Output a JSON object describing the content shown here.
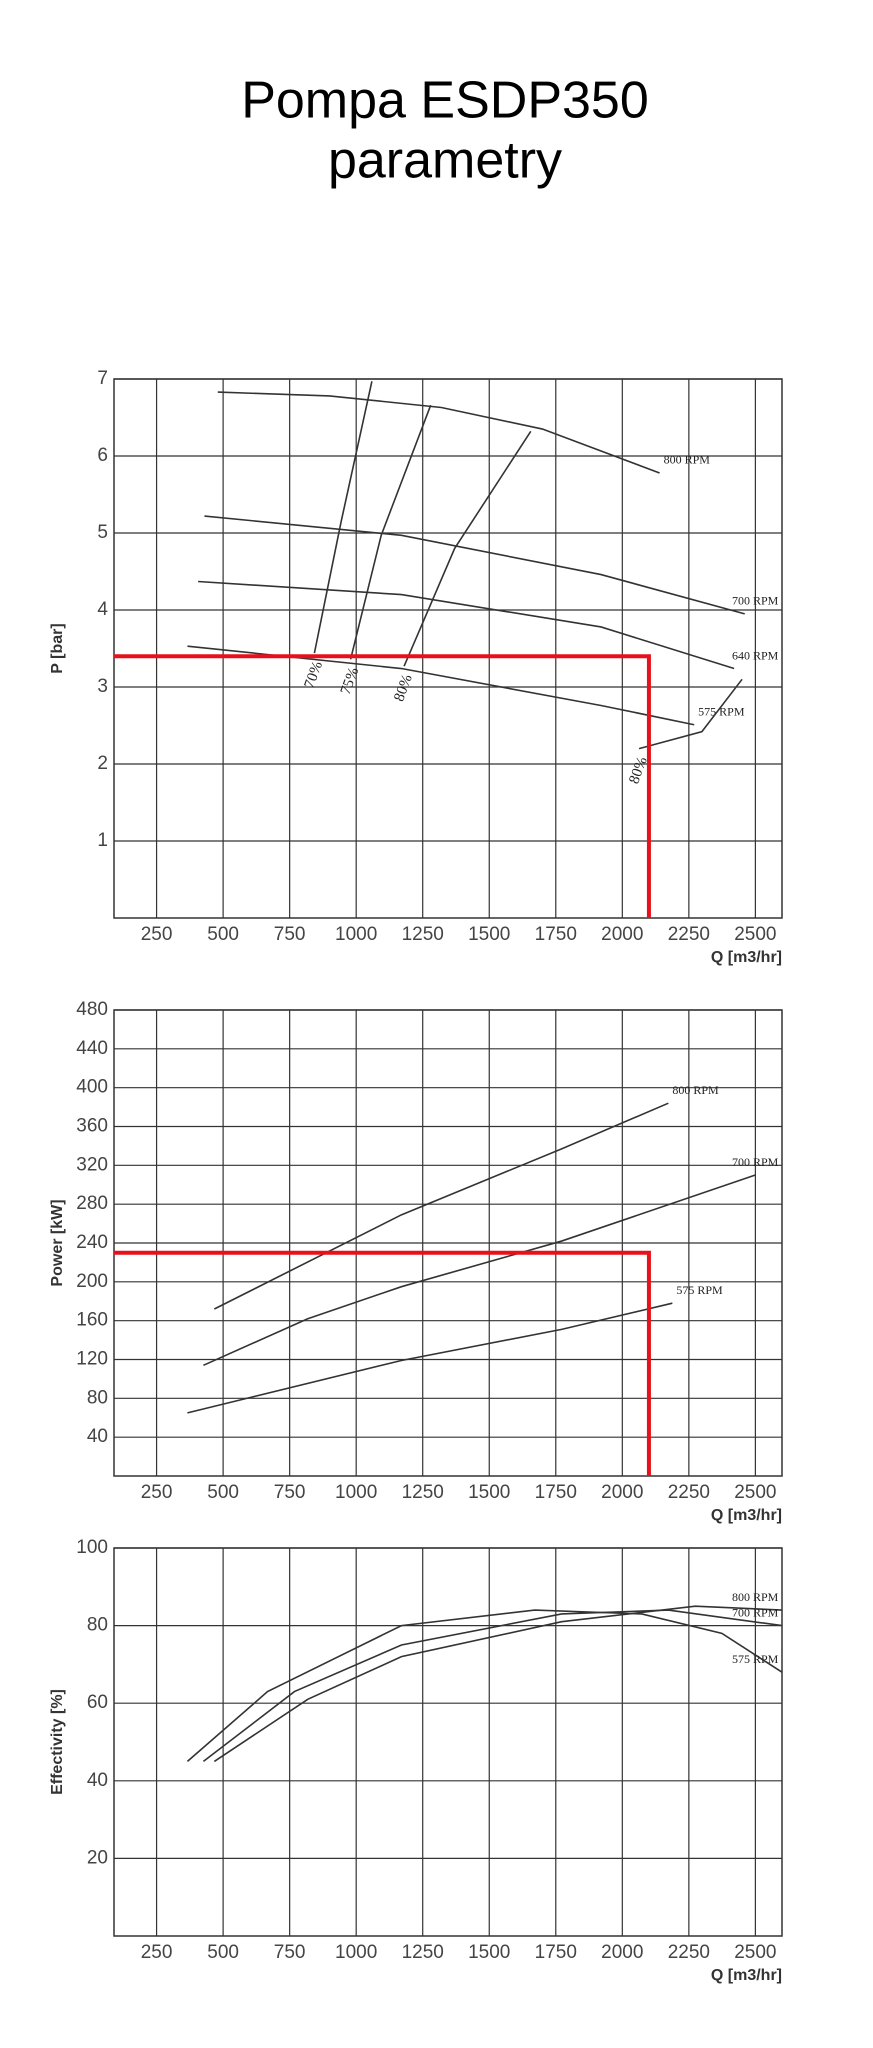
{
  "title": "Pompa ESDP350",
  "subtitle": "parametry",
  "chart_data": [
    {
      "type": "line",
      "x_label": "Q [m3/hr]",
      "y_label": "P [bar]",
      "grid": true,
      "xlim": [
        90,
        2600
      ],
      "xticks": [
        250,
        500,
        750,
        1000,
        1250,
        1500,
        1750,
        2000,
        2250,
        2500
      ],
      "ylim": [
        0,
        7
      ],
      "yticks": [
        1,
        2,
        3,
        4,
        5,
        6,
        7
      ],
      "series": [
        {
          "name": "800 RPM",
          "color": "#333333",
          "x": [
            480,
            900,
            1320,
            1700,
            2140
          ],
          "values": [
            6.83,
            6.78,
            6.63,
            6.35,
            5.78
          ]
        },
        {
          "name": "700 RPM",
          "color": "#333333",
          "x": [
            430,
            1170,
            1920,
            2460
          ],
          "values": [
            5.22,
            4.97,
            4.46,
            3.95
          ]
        },
        {
          "name": "640 RPM",
          "color": "#333333",
          "x": [
            406,
            1170,
            1920,
            2420
          ],
          "values": [
            4.37,
            4.2,
            3.78,
            3.24
          ]
        },
        {
          "name": "575 RPM",
          "color": "#333333",
          "x": [
            366,
            1170,
            1920,
            2270
          ],
          "values": [
            3.53,
            3.24,
            2.76,
            2.51
          ]
        },
        {
          "name": "70%",
          "color": "#333333",
          "x": [
            843,
            943,
            1059
          ],
          "values": [
            3.44,
            5.14,
            6.97
          ]
        },
        {
          "name": "75%",
          "color": "#333333",
          "x": [
            979,
            1094,
            1280
          ],
          "values": [
            3.36,
            4.97,
            6.66
          ]
        },
        {
          "name": "80%",
          "color": "#333333",
          "x": [
            1180,
            1370,
            1656
          ],
          "values": [
            3.27,
            4.8,
            6.32
          ]
        },
        {
          "name": "80%",
          "color": "#333333",
          "x": [
            2063,
            2299,
            2450
          ],
          "values": [
            2.2,
            2.42,
            3.1
          ]
        }
      ],
      "operating_point": {
        "x": 2100,
        "y": 3.4,
        "color": "#e8101a"
      }
    },
    {
      "type": "line",
      "x_label": "Q [m3/hr]",
      "y_label": "Power [kW]",
      "grid": true,
      "xlim": [
        90,
        2600
      ],
      "xticks": [
        250,
        500,
        750,
        1000,
        1250,
        1500,
        1750,
        2000,
        2250,
        2500
      ],
      "ylim": [
        0,
        480
      ],
      "yticks": [
        40,
        80,
        120,
        160,
        200,
        240,
        280,
        320,
        360,
        400,
        440,
        480
      ],
      "series": [
        {
          "name": "800 RPM",
          "color": "#333333",
          "x": [
            467,
            1170,
            1772,
            2173
          ],
          "values": [
            172,
            269,
            337,
            384
          ]
        },
        {
          "name": "700 RPM",
          "color": "#333333",
          "x": [
            426,
            818,
            1170,
            1772,
            2500
          ],
          "values": [
            114,
            162,
            195,
            242,
            310
          ]
        },
        {
          "name": "575 RPM",
          "color": "#333333",
          "x": [
            366,
            1170,
            1772,
            2188
          ],
          "values": [
            65,
            119,
            151,
            178
          ]
        }
      ],
      "operating_point": {
        "x": 2100,
        "y": 230,
        "color": "#e8101a"
      }
    },
    {
      "type": "line",
      "x_label": "Q [m3/hr]",
      "y_label": "Effectivity [%]",
      "grid": true,
      "xlim": [
        90,
        2600
      ],
      "xticks": [
        250,
        500,
        750,
        1000,
        1250,
        1500,
        1750,
        2000,
        2250,
        2500
      ],
      "ylim": [
        0,
        100
      ],
      "yticks": [
        20,
        40,
        60,
        80,
        100
      ],
      "series": [
        {
          "name": "800 RPM",
          "color": "#333333",
          "x": [
            467,
            818,
            1170,
            1772,
            2274,
            2600
          ],
          "values": [
            45,
            61,
            72,
            81,
            85,
            84
          ]
        },
        {
          "name": "700 RPM",
          "color": "#333333",
          "x": [
            426,
            768,
            1170,
            1772,
            2173,
            2600
          ],
          "values": [
            45,
            63,
            75,
            83,
            84,
            80
          ]
        },
        {
          "name": "575 RPM",
          "color": "#333333",
          "x": [
            366,
            667,
            1170,
            1671,
            2073,
            2374,
            2600
          ],
          "values": [
            45,
            63,
            80,
            84,
            83,
            78,
            68
          ]
        }
      ]
    }
  ]
}
